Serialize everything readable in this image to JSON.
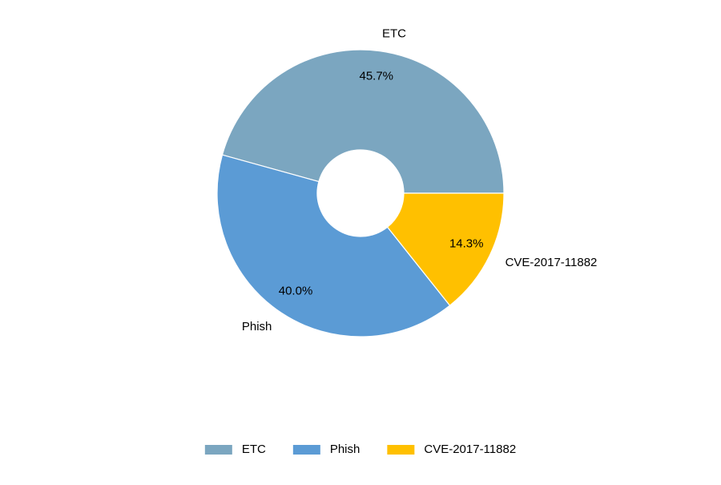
{
  "chart_data": {
    "type": "donut",
    "categories": [
      "ETC",
      "Phish",
      "CVE-2017-11882"
    ],
    "values": [
      45.7,
      40.0,
      14.3
    ],
    "value_labels": [
      "45.7%",
      "40.0%",
      "14.3%"
    ],
    "colors": [
      "#7ba6c0",
      "#5b9bd5",
      "#ffc000"
    ],
    "legend": "bottom"
  }
}
